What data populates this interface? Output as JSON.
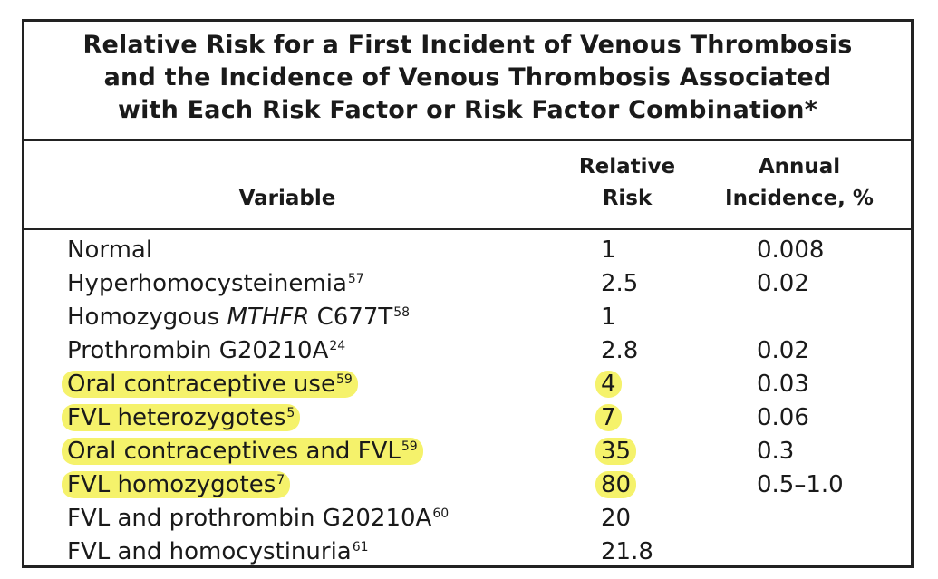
{
  "table": {
    "title_lines": [
      "Relative Risk for a First Incident of Venous Thrombosis",
      "and the Incidence of Venous Thrombosis Associated",
      "with Each Risk Factor or Risk Factor Combination*"
    ],
    "headers": {
      "variable": "Variable",
      "relative_risk_line1": "Relative",
      "relative_risk_line2": "Risk",
      "annual_incidence_line1": "Annual",
      "annual_incidence_line2": "Incidence, %"
    },
    "rows": [
      {
        "variable": "Normal",
        "ref": "",
        "relative_risk": "1",
        "annual_incidence": "0.008",
        "highlighted": false
      },
      {
        "variable": "Hyperhomocysteinemia",
        "ref": "57",
        "relative_risk": "2.5",
        "annual_incidence": "0.02",
        "highlighted": false
      },
      {
        "variable_prefix": "Homozygous ",
        "variable_italic": "MTHFR",
        "variable_suffix": " C677T",
        "ref": "58",
        "relative_risk": "1",
        "annual_incidence": "",
        "highlighted": false
      },
      {
        "variable": "Prothrombin G20210A",
        "ref": "24",
        "relative_risk": "2.8",
        "annual_incidence": "0.02",
        "highlighted": false
      },
      {
        "variable": "Oral contraceptive use",
        "ref": "59",
        "relative_risk": "4",
        "annual_incidence": "0.03",
        "highlighted": true
      },
      {
        "variable": "FVL heterozygotes",
        "ref": "5",
        "relative_risk": "7",
        "annual_incidence": "0.06",
        "highlighted": true
      },
      {
        "variable": "Oral contraceptives and FVL",
        "ref": "59",
        "relative_risk": "35",
        "annual_incidence": "0.3",
        "highlighted": true
      },
      {
        "variable": "FVL homozygotes",
        "ref": "7",
        "relative_risk": "80",
        "annual_incidence": "0.5–1.0",
        "highlighted": true
      },
      {
        "variable": "FVL and prothrombin G20210A",
        "ref": "60",
        "relative_risk": "20",
        "annual_incidence": "",
        "highlighted": false
      },
      {
        "variable": "FVL and homocystinuria",
        "ref": "61",
        "relative_risk": "21.8",
        "annual_incidence": "",
        "highlighted": false
      }
    ],
    "highlight_color": "#f5f26b",
    "border_color": "#222222"
  }
}
